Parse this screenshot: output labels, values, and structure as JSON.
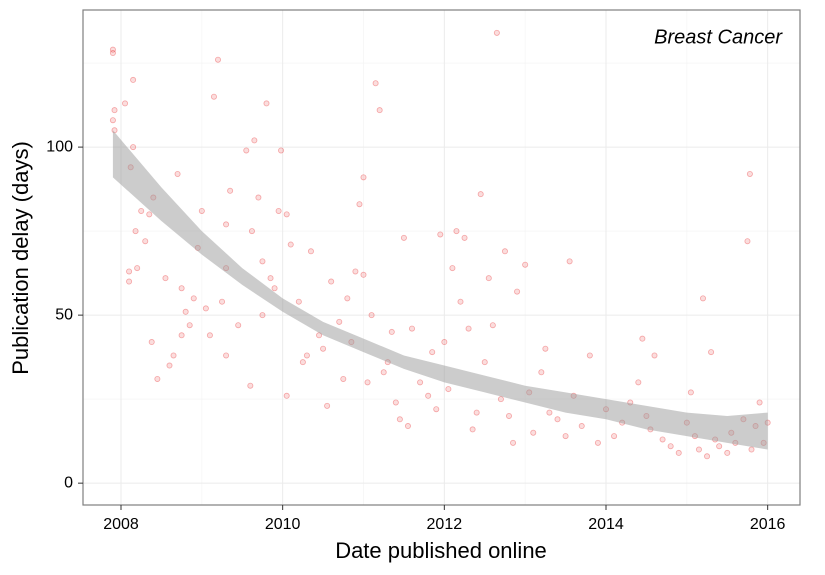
{
  "chart_data": {
    "type": "scatter",
    "annotation": "Breast Cancer",
    "xlabel": "Date published online",
    "ylabel": "Publication delay (days)",
    "xlim": [
      2007.53,
      2016.4
    ],
    "ylim": [
      -6.5,
      140.8
    ],
    "xticks": [
      2008,
      2010,
      2012,
      2014,
      2016
    ],
    "yticks": [
      0,
      50,
      100
    ],
    "grid": true,
    "color": "#e41a1c",
    "x": [
      2007.9,
      2007.9,
      2007.92,
      2007.9,
      2007.92,
      2008.05,
      2008.15,
      2008.12,
      2008.15,
      2008.1,
      2008.1,
      2008.2,
      2008.18,
      2008.25,
      2008.3,
      2008.35,
      2008.4,
      2008.38,
      2008.45,
      2008.55,
      2008.6,
      2008.65,
      2008.7,
      2008.75,
      2008.75,
      2008.8,
      2008.85,
      2008.9,
      2008.95,
      2009.0,
      2009.05,
      2009.1,
      2009.15,
      2009.2,
      2009.25,
      2009.3,
      2009.3,
      2009.35,
      2009.3,
      2009.45,
      2009.55,
      2009.6,
      2009.62,
      2009.65,
      2009.7,
      2009.75,
      2009.75,
      2009.8,
      2009.85,
      2009.9,
      2009.95,
      2009.98,
      2010.05,
      2010.05,
      2010.1,
      2010.2,
      2010.25,
      2010.3,
      2010.35,
      2010.45,
      2010.5,
      2010.55,
      2010.6,
      2010.7,
      2010.75,
      2010.8,
      2010.85,
      2010.9,
      2010.95,
      2011.0,
      2011.0,
      2011.05,
      2011.1,
      2011.15,
      2011.2,
      2011.25,
      2011.3,
      2011.35,
      2011.4,
      2011.45,
      2011.5,
      2011.55,
      2011.6,
      2011.7,
      2011.8,
      2011.85,
      2011.9,
      2011.95,
      2012.0,
      2012.05,
      2012.1,
      2012.15,
      2012.2,
      2012.25,
      2012.3,
      2012.35,
      2012.4,
      2012.45,
      2012.5,
      2012.55,
      2012.6,
      2012.65,
      2012.7,
      2012.75,
      2012.8,
      2012.85,
      2012.9,
      2013.0,
      2013.05,
      2013.1,
      2013.2,
      2013.25,
      2013.3,
      2013.4,
      2013.5,
      2013.55,
      2013.6,
      2013.7,
      2013.8,
      2013.9,
      2014.0,
      2014.1,
      2014.2,
      2014.3,
      2014.4,
      2014.45,
      2014.5,
      2014.55,
      2014.6,
      2014.7,
      2014.8,
      2014.9,
      2015.0,
      2015.05,
      2015.1,
      2015.15,
      2015.2,
      2015.25,
      2015.3,
      2015.35,
      2015.4,
      2015.5,
      2015.55,
      2015.6,
      2015.7,
      2015.75,
      2015.78,
      2015.8,
      2015.85,
      2015.9,
      2015.95,
      2016.0
    ],
    "values": [
      129,
      128,
      111,
      108,
      105,
      113,
      120,
      94,
      100,
      63,
      60,
      64,
      75,
      81,
      72,
      80,
      85,
      42,
      31,
      61,
      35,
      38,
      92,
      44,
      58,
      51,
      47,
      55,
      70,
      81,
      52,
      44,
      115,
      126,
      54,
      64,
      77,
      87,
      38,
      47,
      99,
      29,
      75,
      102,
      85,
      66,
      50,
      113,
      61,
      58,
      81,
      99,
      80,
      26,
      71,
      54,
      36,
      38,
      69,
      44,
      40,
      23,
      60,
      48,
      31,
      55,
      42,
      63,
      83,
      91,
      62,
      30,
      50,
      119,
      111,
      33,
      36,
      45,
      24,
      19,
      73,
      17,
      46,
      30,
      26,
      39,
      22,
      74,
      42,
      28,
      64,
      75,
      54,
      73,
      46,
      16,
      21,
      86,
      36,
      61,
      47,
      134,
      25,
      69,
      20,
      12,
      57,
      65,
      27,
      15,
      33,
      40,
      21,
      19,
      14,
      66,
      26,
      17,
      38,
      12,
      22,
      14,
      18,
      24,
      30,
      43,
      20,
      16,
      38,
      13,
      11,
      9,
      18,
      27,
      14,
      10,
      55,
      8,
      39,
      13,
      11,
      9,
      15,
      12,
      19,
      72,
      92,
      10,
      17,
      24,
      12,
      18
    ],
    "band": {
      "color": "#999999",
      "x": [
        2007.9,
        2008.5,
        2009,
        2009.5,
        2010,
        2010.5,
        2011,
        2011.5,
        2012,
        2012.5,
        2013,
        2013.5,
        2014,
        2014.5,
        2015,
        2015.5,
        2016
      ],
      "lower": [
        91,
        78,
        68,
        59,
        51,
        44,
        39,
        34,
        30,
        27,
        24,
        21,
        19,
        16,
        14,
        12,
        10
      ],
      "upper": [
        105,
        88,
        75,
        64,
        55,
        48,
        43,
        38,
        35,
        32,
        29,
        27,
        25,
        23,
        21,
        20,
        21
      ]
    }
  }
}
